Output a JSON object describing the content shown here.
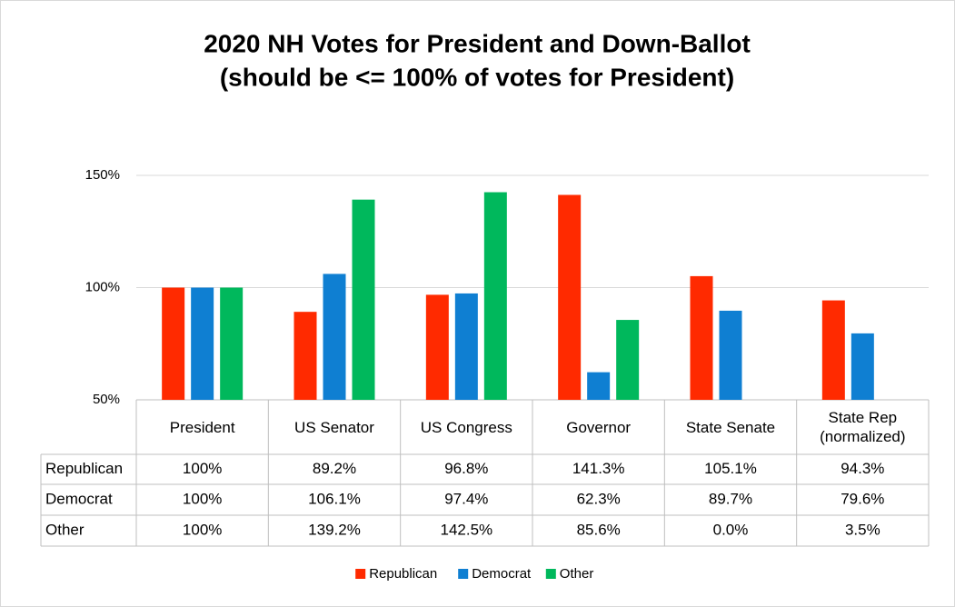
{
  "chart_data": {
    "type": "bar",
    "title": "2020 NH Votes for President and Down-Ballot",
    "subtitle": "(should be <= 100% of votes for President)",
    "categories": [
      "President",
      "US Senator",
      "US Congress",
      "Governor",
      "State Senate",
      "State Rep (normalized)"
    ],
    "series": [
      {
        "name": "Republican",
        "color": "#ff2a00",
        "values": [
          100,
          89.2,
          96.8,
          141.3,
          105.1,
          94.3
        ],
        "value_labels": [
          "100%",
          "89.2%",
          "96.8%",
          "141.3%",
          "105.1%",
          "94.3%"
        ]
      },
      {
        "name": "Democrat",
        "color": "#0f7fd2",
        "values": [
          100,
          106.1,
          97.4,
          62.3,
          89.7,
          79.6
        ],
        "value_labels": [
          "100%",
          "106.1%",
          "97.4%",
          "62.3%",
          "89.7%",
          "79.6%"
        ]
      },
      {
        "name": "Other",
        "color": "#00b85c",
        "values": [
          100,
          139.2,
          142.5,
          85.6,
          0.0,
          3.5
        ],
        "value_labels": [
          "100%",
          "139.2%",
          "142.5%",
          "85.6%",
          "0.0%",
          "3.5%"
        ]
      }
    ],
    "ylim": [
      50,
      150
    ],
    "yticks": [
      {
        "value": 50,
        "label": "50%"
      },
      {
        "value": 100,
        "label": "100%"
      },
      {
        "value": 150,
        "label": "150%"
      }
    ],
    "grid": true,
    "legend": "bottom"
  }
}
